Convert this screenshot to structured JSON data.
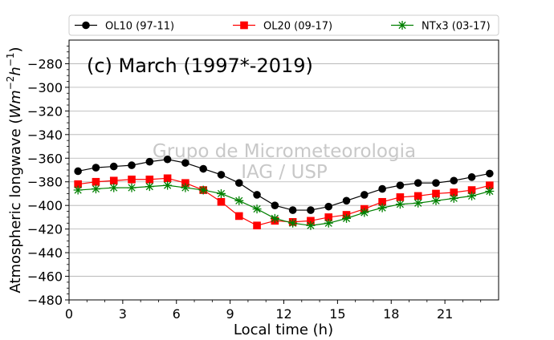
{
  "chart_data": {
    "type": "line",
    "panel_title": "(c) March (1997*-2019)",
    "watermark": [
      "Grupo de Micrometeorologia",
      "IAG / USP"
    ],
    "xlabel": "Local time (h)",
    "ylabel_main": "Atmospheric longwave (",
    "ylabel_math": "Wm",
    "ylabel_sup1": "−2",
    "ylabel_h": "h",
    "ylabel_sup2": "−1",
    "ylabel_close": ")",
    "xlim": [
      0,
      24
    ],
    "ylim": [
      -480,
      -260
    ],
    "xticks": [
      "0",
      "3",
      "6",
      "9",
      "12",
      "15",
      "18",
      "21"
    ],
    "xtick_values": [
      0,
      3,
      6,
      9,
      12,
      15,
      18,
      21
    ],
    "yticks": [
      "−280",
      "−300",
      "−320",
      "−340",
      "−360",
      "−380",
      "−400",
      "−420",
      "−440",
      "−460",
      "−480"
    ],
    "ytick_values": [
      -280,
      -300,
      -320,
      -340,
      -360,
      -380,
      -400,
      -420,
      -440,
      -460,
      -480
    ],
    "grid": "horizontal",
    "legend_position": "top",
    "x": [
      0.5,
      1.5,
      2.5,
      3.5,
      4.5,
      5.5,
      6.5,
      7.5,
      8.5,
      9.5,
      10.5,
      11.5,
      12.5,
      13.5,
      14.5,
      15.5,
      16.5,
      17.5,
      18.5,
      19.5,
      20.5,
      21.5,
      22.5,
      23.5
    ],
    "series": [
      {
        "name": "OL10 (97-11)",
        "color": "#000000",
        "marker": "circle",
        "values": [
          -371,
          -368,
          -367,
          -366,
          -363,
          -361,
          -364,
          -369,
          -374,
          -381,
          -391,
          -400,
          -404,
          -404,
          -401,
          -396,
          -391,
          -386,
          -383,
          -381,
          -381,
          -379,
          -376,
          -373
        ]
      },
      {
        "name": "OL20 (09-17)",
        "color": "#ff0000",
        "marker": "square",
        "values": [
          -382,
          -380,
          -379,
          -378,
          -378,
          -377,
          -381,
          -387,
          -397,
          -409,
          -417,
          -413,
          -414,
          -413,
          -410,
          -408,
          -403,
          -397,
          -393,
          -392,
          -390,
          -389,
          -387,
          -383
        ]
      },
      {
        "name": "NTx3 (03-17)",
        "color": "#008000",
        "marker": "star",
        "values": [
          -387,
          -386,
          -385,
          -385,
          -384,
          -383,
          -385,
          -387,
          -390,
          -396,
          -403,
          -411,
          -415,
          -417,
          -415,
          -411,
          -406,
          -402,
          -399,
          -398,
          -396,
          -394,
          -392,
          -388
        ]
      }
    ]
  }
}
